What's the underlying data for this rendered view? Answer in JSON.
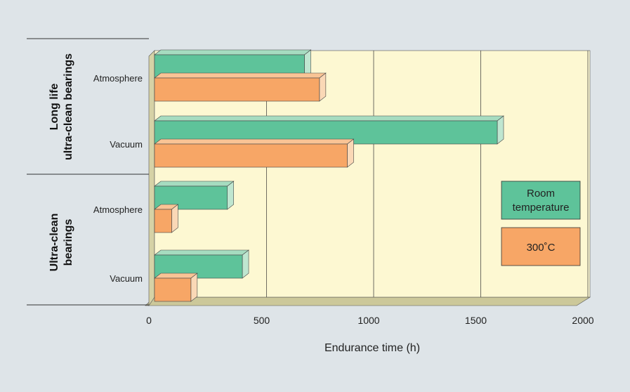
{
  "colors": {
    "background": "#dee4e8",
    "plot_face": "#fdf8d2",
    "plot_wall": "#d6d2a6",
    "plot_floor": "#ccc89a",
    "room_temperature": "#5ec39a",
    "room_temperature_side": "#bfe6d0",
    "room_temperature_top": "#a6dcc0",
    "high_temperature": "#f7a666",
    "high_temperature_side": "#fad8b6",
    "high_temperature_top": "#f9c495"
  },
  "chart_data": {
    "type": "bar",
    "orientation": "horizontal",
    "three_d": true,
    "xlabel": "Endurance time (h)",
    "xlim": [
      0,
      2000
    ],
    "xticks": [
      0,
      500,
      1000,
      1500,
      2000
    ],
    "grid": true,
    "legend_position": "right",
    "groups": [
      {
        "label": "Long life\nultra-clean bearings",
        "categories": [
          "Atmosphere",
          "Vacuum"
        ]
      },
      {
        "label": "Ultra-clean\nbearings",
        "categories": [
          "Atmosphere",
          "Vacuum"
        ]
      }
    ],
    "categories": [
      "Atmosphere",
      "Vacuum",
      "Atmosphere",
      "Vacuum"
    ],
    "series": [
      {
        "name": "Room temperature",
        "color": "#5ec39a",
        "values": [
          700,
          1600,
          340,
          410
        ]
      },
      {
        "name": "300˚C",
        "color": "#f7a666",
        "values": [
          770,
          900,
          80,
          170
        ]
      }
    ]
  }
}
